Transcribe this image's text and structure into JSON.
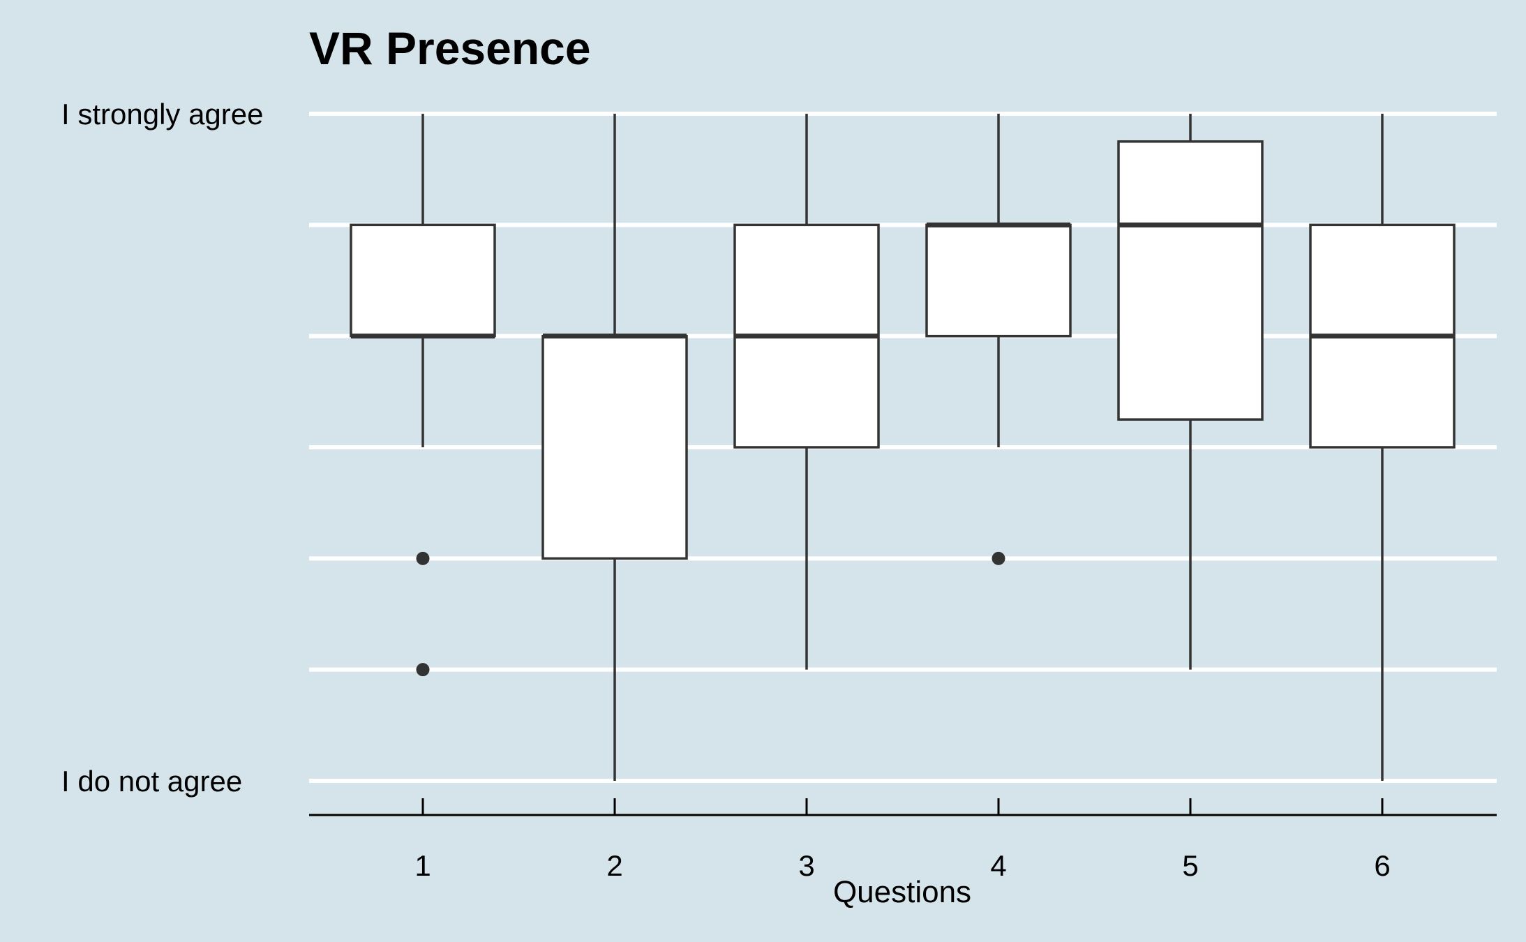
{
  "chart_data": {
    "type": "box",
    "title": "VR Presence",
    "xlabel": "Questions",
    "ylabel": "",
    "ylim": [
      1,
      7
    ],
    "y_tick_values": [
      1,
      2,
      3,
      4,
      5,
      6,
      7
    ],
    "y_tick_labels": [
      {
        "value": 7,
        "label": "I strongly agree"
      },
      {
        "value": 1,
        "label": "I do not agree"
      }
    ],
    "grid": "horizontal",
    "categories": [
      "1",
      "2",
      "3",
      "4",
      "5",
      "6"
    ],
    "boxes": [
      {
        "category": "1",
        "whisker_low": 4,
        "q1": 5,
        "median": 5,
        "q3": 6,
        "whisker_high": 7,
        "outliers": [
          3,
          2
        ]
      },
      {
        "category": "2",
        "whisker_low": 1,
        "q1": 3,
        "median": 5,
        "q3": 5,
        "whisker_high": 7,
        "outliers": []
      },
      {
        "category": "3",
        "whisker_low": 2,
        "q1": 4,
        "median": 5,
        "q3": 6,
        "whisker_high": 7,
        "outliers": []
      },
      {
        "category": "4",
        "whisker_low": 4,
        "q1": 5,
        "median": 6,
        "q3": 6,
        "whisker_high": 7,
        "outliers": [
          3
        ]
      },
      {
        "category": "5",
        "whisker_low": 2,
        "q1": 4.25,
        "median": 6,
        "q3": 6.75,
        "whisker_high": 7,
        "outliers": []
      },
      {
        "category": "6",
        "whisker_low": 1,
        "q1": 4,
        "median": 5,
        "q3": 6,
        "whisker_high": 7,
        "outliers": []
      }
    ],
    "colors": {
      "background": "#d5e4eb",
      "grid": "#ffffff",
      "box_fill": "#ffffff",
      "box_stroke": "#333333",
      "axis": "#000000"
    }
  }
}
